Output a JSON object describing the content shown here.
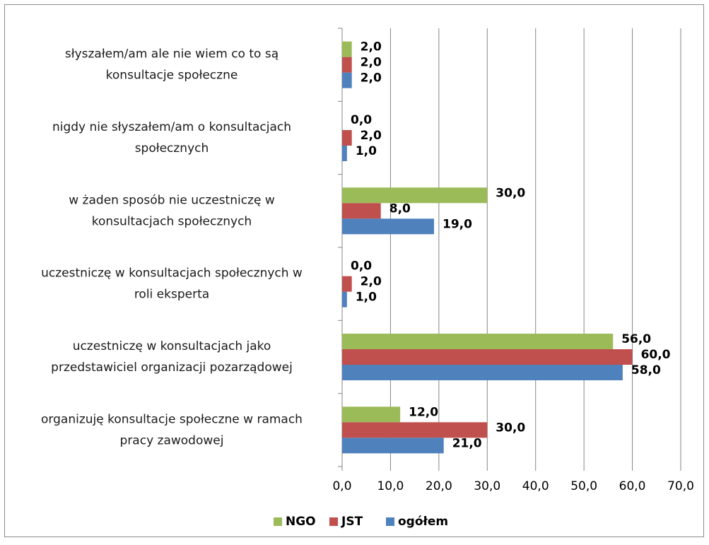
{
  "chart_data": {
    "type": "hbar",
    "categories": [
      [
        "słyszałem/am ale nie wiem co to są",
        "konsultacje społeczne"
      ],
      [
        "nigdy nie słyszałem/am o konsultacjach",
        "społecznych"
      ],
      [
        "w żaden sposób nie uczestniczę w",
        "konsultacjach społecznych"
      ],
      [
        "uczestniczę w konsultacjach społecznych w",
        "roli eksperta"
      ],
      [
        "uczestniczę w konsultacjach jako",
        "przedstawiciel  organizacji  pozarządowej"
      ],
      [
        "organizuję konsultacje społeczne w ramach",
        "pracy zawodowej"
      ]
    ],
    "series": [
      {
        "name": "NGO",
        "color": "#9bbb59",
        "values": [
          2,
          0,
          30,
          0,
          56,
          12
        ],
        "value_labels": [
          "2,0",
          "0,0",
          "30,0",
          "0,0",
          "56,0",
          "12,0"
        ]
      },
      {
        "name": "JST",
        "color": "#c0504d",
        "values": [
          2,
          2,
          8,
          2,
          60,
          30
        ],
        "value_labels": [
          "2,0",
          "2,0",
          "8,0",
          "2,0",
          "60,0",
          "30,0"
        ]
      },
      {
        "name": "ogółem",
        "color": "#4f81bd",
        "values": [
          2,
          1,
          19,
          1,
          58,
          21
        ],
        "value_labels": [
          "2,0",
          "1,0",
          "19,0",
          "1,0",
          "58,0",
          "21,0"
        ]
      }
    ],
    "xlim": [
      0,
      70
    ],
    "xticks": [
      {
        "value": 0,
        "label": "0,0"
      },
      {
        "value": 10,
        "label": "10,0"
      },
      {
        "value": 20,
        "label": "20,0"
      },
      {
        "value": 30,
        "label": "30,0"
      },
      {
        "value": 40,
        "label": "40,0"
      },
      {
        "value": 50,
        "label": "50,0"
      },
      {
        "value": 60,
        "label": "60,0"
      },
      {
        "value": 70,
        "label": "70,0"
      }
    ],
    "grid": true,
    "legend": "bottom"
  }
}
